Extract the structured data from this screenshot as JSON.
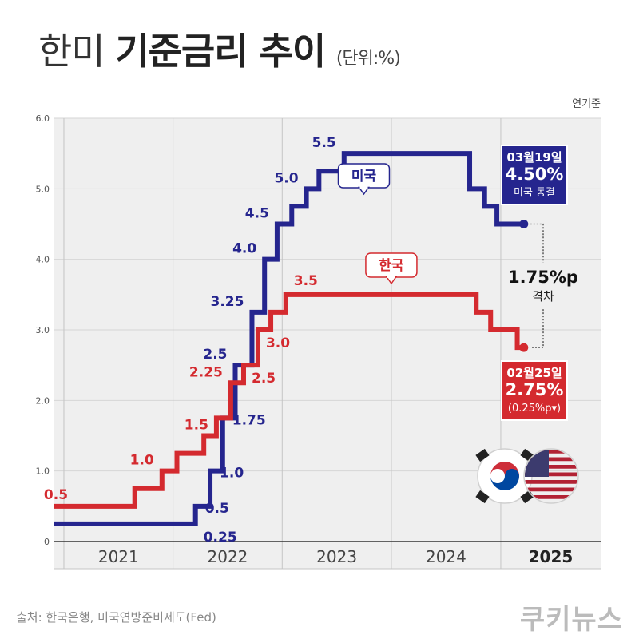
{
  "header": {
    "title_light": "한미",
    "title_bold": "기준금리 추이",
    "unit": "(단위:%)"
  },
  "basis_label": "연기준",
  "source": "출처: 한국은행, 미국연방준비제도(Fed)",
  "brand": "쿠키뉴스",
  "colors": {
    "us": "#25258e",
    "korea": "#d42a2f",
    "plot_bg": "#efefef",
    "grid": "#ffffff"
  },
  "chart_data": {
    "type": "line",
    "step": true,
    "xlim": [
      "2020-11-30",
      "2025-12-01"
    ],
    "ylim": [
      0,
      6
    ],
    "ylabel": "",
    "xlabel": "",
    "yticks": [
      {
        "v": 0,
        "label": "0"
      },
      {
        "v": 1,
        "label": "1.0"
      },
      {
        "v": 2,
        "label": "2.0"
      },
      {
        "v": 3,
        "label": "3.0"
      },
      {
        "v": 4,
        "label": "4.0"
      },
      {
        "v": 5,
        "label": "5.0"
      },
      {
        "v": 6,
        "label": "6.0"
      }
    ],
    "years": [
      {
        "label": "2021",
        "start": "2021-01-01",
        "end": "2022-01-01"
      },
      {
        "label": "2022",
        "start": "2022-01-01",
        "end": "2023-01-01"
      },
      {
        "label": "2023",
        "start": "2023-01-01",
        "end": "2024-01-01"
      },
      {
        "label": "2024",
        "start": "2024-01-01",
        "end": "2025-01-01"
      },
      {
        "label": "2025",
        "start": "2025-01-01",
        "end": "2025-12-01",
        "bold": true
      }
    ],
    "series": [
      {
        "name": "미국",
        "key": "us",
        "points": [
          [
            "2020-11-30",
            0.25
          ],
          [
            "2022-03-17",
            0.5
          ],
          [
            "2022-05-05",
            1.0
          ],
          [
            "2022-06-16",
            1.75
          ],
          [
            "2022-07-28",
            2.5
          ],
          [
            "2022-09-22",
            3.25
          ],
          [
            "2022-11-03",
            4.0
          ],
          [
            "2022-12-15",
            4.5
          ],
          [
            "2023-02-02",
            4.75
          ],
          [
            "2023-03-23",
            5.0
          ],
          [
            "2023-05-04",
            5.25
          ],
          [
            "2023-07-27",
            5.5
          ],
          [
            "2024-09-19",
            5.0
          ],
          [
            "2024-11-08",
            4.75
          ],
          [
            "2024-12-19",
            4.5
          ],
          [
            "2025-03-19",
            4.5
          ]
        ],
        "labels": [
          {
            "date": "2022-03-17",
            "v": 0.25,
            "text": "0.25",
            "pos": "below-right"
          },
          {
            "date": "2022-03-17",
            "v": 0.5,
            "text": "0.5",
            "pos": "right"
          },
          {
            "date": "2022-05-05",
            "v": 1.0,
            "text": "1.0",
            "pos": "right"
          },
          {
            "date": "2022-06-16",
            "v": 1.75,
            "text": "1.75",
            "pos": "right"
          },
          {
            "date": "2022-07-28",
            "v": 2.5,
            "text": "2.5",
            "pos": "left"
          },
          {
            "date": "2022-09-22",
            "v": 3.25,
            "text": "3.25",
            "pos": "left"
          },
          {
            "date": "2022-11-03",
            "v": 4.0,
            "text": "4.0",
            "pos": "left"
          },
          {
            "date": "2022-12-15",
            "v": 4.5,
            "text": "4.5",
            "pos": "left"
          },
          {
            "date": "2023-03-23",
            "v": 5.0,
            "text": "5.0",
            "pos": "left"
          },
          {
            "date": "2023-07-27",
            "v": 5.5,
            "text": "5.5",
            "pos": "left"
          }
        ],
        "callout": "미국",
        "end_box": {
          "date": "03월19일",
          "value": "4.50%",
          "note": "미국 동결"
        }
      },
      {
        "name": "한국",
        "key": "korea",
        "points": [
          [
            "2020-11-30",
            0.5
          ],
          [
            "2021-08-26",
            0.75
          ],
          [
            "2021-11-25",
            1.0
          ],
          [
            "2022-01-14",
            1.25
          ],
          [
            "2022-04-14",
            1.5
          ],
          [
            "2022-05-26",
            1.75
          ],
          [
            "2022-07-13",
            2.25
          ],
          [
            "2022-08-25",
            2.5
          ],
          [
            "2022-10-12",
            3.0
          ],
          [
            "2022-11-24",
            3.25
          ],
          [
            "2023-01-13",
            3.5
          ],
          [
            "2024-10-11",
            3.25
          ],
          [
            "2024-11-28",
            3.0
          ],
          [
            "2025-02-25",
            2.75
          ],
          [
            "2025-03-19",
            2.75
          ]
        ],
        "labels": [
          {
            "date": "2021-01-01",
            "v": 0.5,
            "text": "0.5",
            "pos": "left-top"
          },
          {
            "date": "2021-11-25",
            "v": 1.0,
            "text": "1.0",
            "pos": "left"
          },
          {
            "date": "2022-05-26",
            "v": 1.5,
            "text": "1.5",
            "pos": "left"
          },
          {
            "date": "2022-07-13",
            "v": 2.25,
            "text": "2.25",
            "pos": "left"
          },
          {
            "date": "2022-08-25",
            "v": 2.5,
            "text": "2.5",
            "pos": "below-right"
          },
          {
            "date": "2022-10-12",
            "v": 3.0,
            "text": "3.0",
            "pos": "below-right"
          },
          {
            "date": "2023-01-13",
            "v": 3.5,
            "text": "3.5",
            "pos": "above"
          }
        ],
        "callout": "한국",
        "end_box": {
          "date": "02월25일",
          "value": "2.75%",
          "note": "(0.25%p▾)"
        }
      }
    ],
    "gap": {
      "value": "1.75%p",
      "label": "격차"
    }
  }
}
